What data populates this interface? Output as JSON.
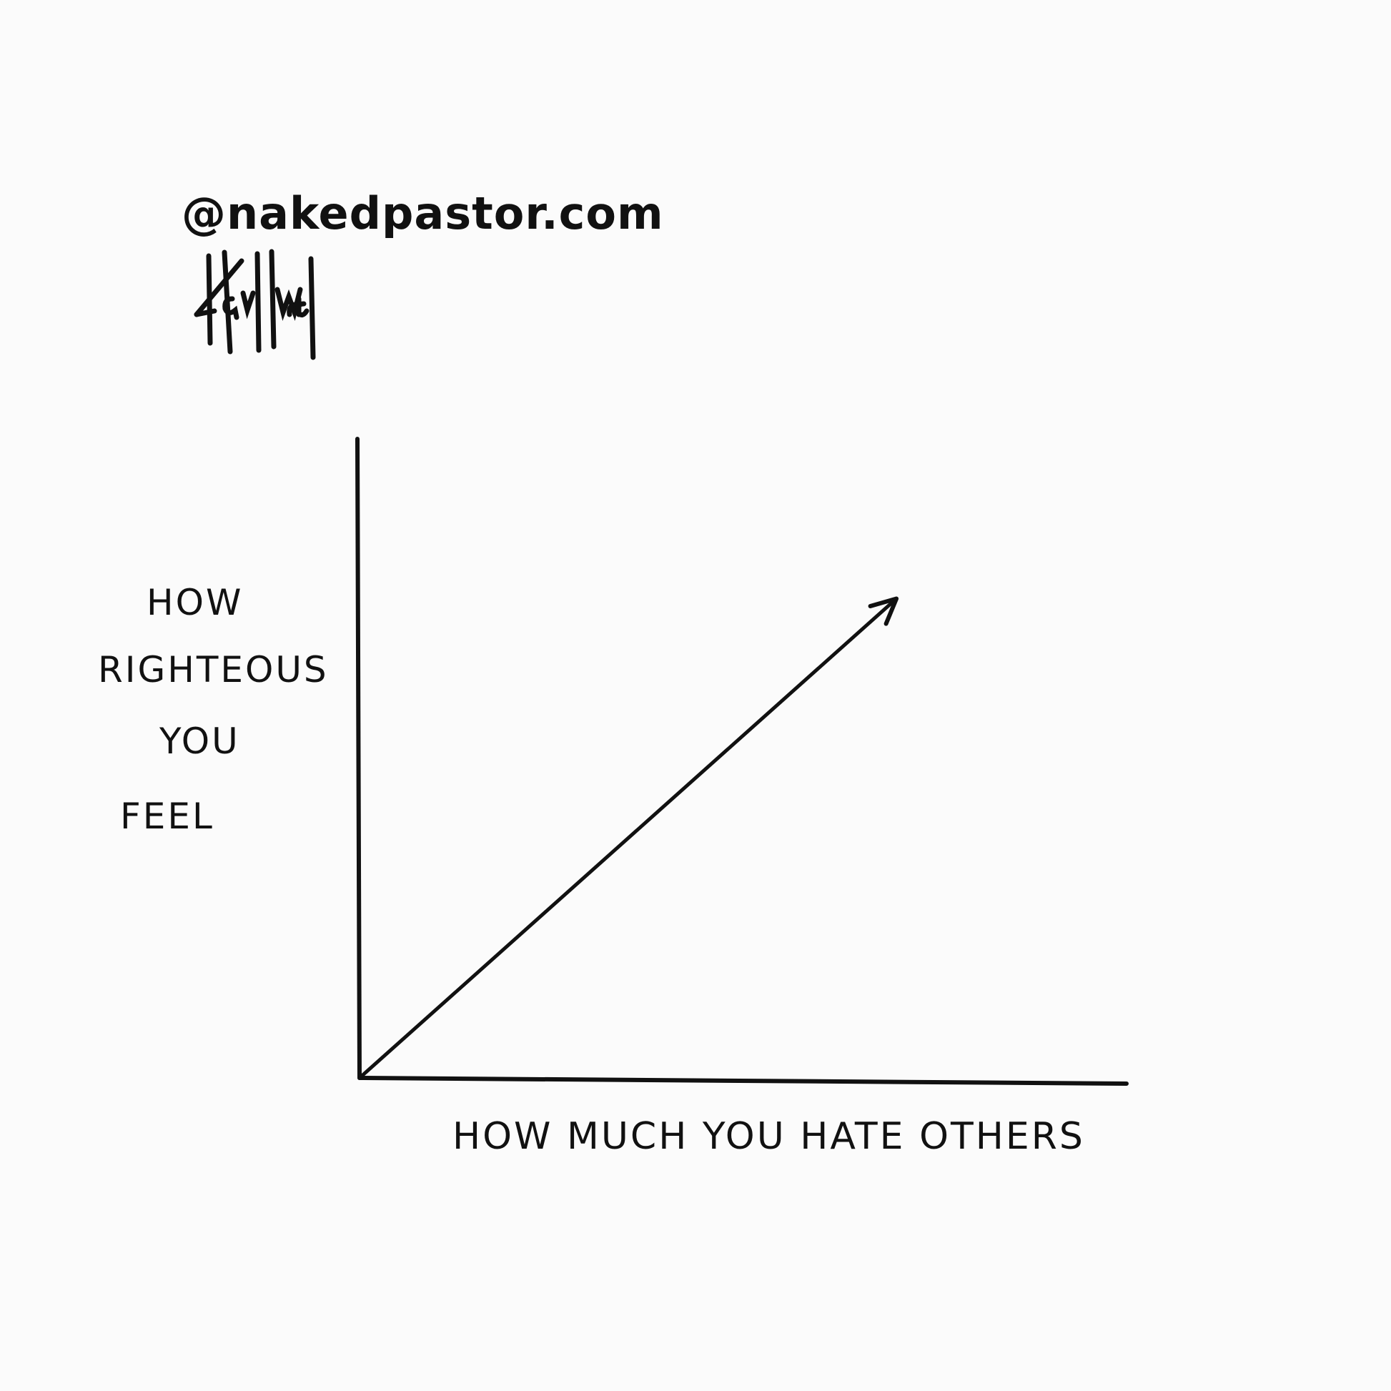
{
  "credit": "@nakedpastor.com",
  "signature": "Hayward",
  "chart_data": {
    "type": "line",
    "title": "",
    "xlabel": "HOW MUCH YOU HATE OTHERS",
    "ylabel_lines": [
      "HOW",
      "RIGHTEOUS",
      "YOU",
      "FEEL"
    ],
    "ylabel": "HOW RIGHTEOUS YOU FEEL",
    "grid": false,
    "ticks": false,
    "xlim": [
      0,
      1
    ],
    "ylim": [
      0,
      1
    ],
    "series": [
      {
        "x": [
          0,
          0.1,
          0.2,
          0.3,
          0.4,
          0.5,
          0.6,
          0.7,
          0.7
        ],
        "y": [
          0,
          0.08,
          0.17,
          0.26,
          0.36,
          0.46,
          0.56,
          0.66,
          0.75
        ],
        "arrow_end": true
      }
    ],
    "line_color": "#111111"
  }
}
